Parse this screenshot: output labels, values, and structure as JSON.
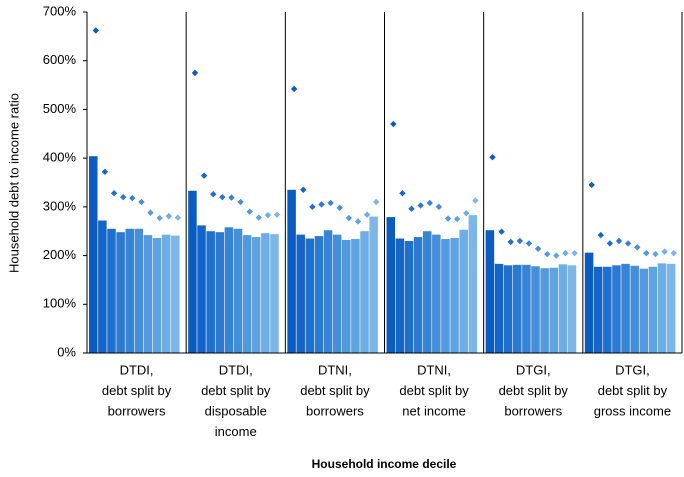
{
  "chart_data": {
    "type": "grouped-bar-marker",
    "y_label": "Household debt to income ratio",
    "x_label": "Household income decile",
    "ylim": [
      0,
      700
    ],
    "yticks": [
      {
        "value": 0,
        "label": "0%"
      },
      {
        "value": 100,
        "label": "100%"
      },
      {
        "value": 200,
        "label": "200%"
      },
      {
        "value": 300,
        "label": "300%"
      },
      {
        "value": 400,
        "label": "400%"
      },
      {
        "value": 500,
        "label": "500%"
      },
      {
        "value": 600,
        "label": "600%"
      },
      {
        "value": 700,
        "label": "700%"
      }
    ],
    "bar_colors": [
      "#0b5cc2",
      "#1565c8",
      "#1f6fcd",
      "#2b79d2",
      "#3784d6",
      "#448eda",
      "#5299de",
      "#60a3e1",
      "#6eade5",
      "#7db6e8"
    ],
    "marker_colors": [
      "#0b5cc2",
      "#1565c8",
      "#1f6fcd",
      "#2b79d2",
      "#3784d6",
      "#448eda",
      "#5299de",
      "#60a3e1",
      "#6eade5",
      "#7db6e8"
    ],
    "groups": [
      {
        "label": [
          "DTDI,",
          "debt split by",
          "borrowers"
        ],
        "bars": [
          404,
          272,
          255,
          248,
          255,
          255,
          242,
          236,
          243,
          241
        ],
        "markers": [
          662,
          372,
          328,
          320,
          318,
          310,
          288,
          277,
          281,
          278
        ]
      },
      {
        "label": [
          "DTDI,",
          "debt split by",
          "disposable",
          "income"
        ],
        "bars": [
          333,
          262,
          250,
          248,
          258,
          255,
          242,
          238,
          246,
          244
        ],
        "markers": [
          575,
          364,
          326,
          320,
          319,
          310,
          290,
          278,
          283,
          284
        ]
      },
      {
        "label": [
          "DTNI,",
          "debt split by",
          "borrowers"
        ],
        "bars": [
          335,
          243,
          235,
          240,
          252,
          243,
          232,
          234,
          250,
          280
        ],
        "markers": [
          542,
          335,
          300,
          305,
          308,
          298,
          277,
          270,
          284,
          310
        ]
      },
      {
        "label": [
          "DTNI,",
          "debt split by",
          "net income"
        ],
        "bars": [
          279,
          235,
          230,
          238,
          250,
          243,
          234,
          236,
          253,
          283
        ],
        "markers": [
          470,
          328,
          296,
          303,
          308,
          300,
          276,
          275,
          287,
          313
        ]
      },
      {
        "label": [
          "DTGI,",
          "debt split by",
          "borrowers"
        ],
        "bars": [
          252,
          183,
          180,
          181,
          181,
          178,
          174,
          175,
          182,
          180
        ],
        "markers": [
          402,
          249,
          228,
          230,
          225,
          214,
          203,
          200,
          205,
          205
        ]
      },
      {
        "label": [
          "DTGI,",
          "debt split by",
          "gross income"
        ],
        "bars": [
          206,
          177,
          177,
          180,
          183,
          179,
          173,
          177,
          184,
          183
        ],
        "markers": [
          345,
          242,
          225,
          230,
          225,
          217,
          205,
          203,
          208,
          205
        ]
      }
    ]
  }
}
